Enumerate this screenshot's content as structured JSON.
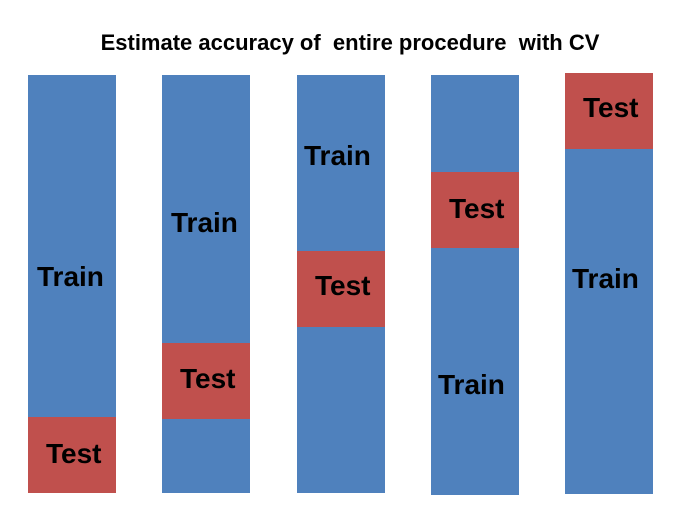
{
  "title": "Estimate accuracy of  entire procedure  with CV",
  "colors": {
    "train": "#4f81bd",
    "test": "#c0504d",
    "text": "#000000",
    "background": "#ffffff"
  },
  "folds": [
    {
      "train_label": "Train",
      "test_label": "Test"
    },
    {
      "train_label": "Train",
      "test_label": "Test"
    },
    {
      "train_label": "Train",
      "test_label": "Test"
    },
    {
      "train_label": "Train",
      "test_label": "Test"
    },
    {
      "train_label": "Train",
      "test_label": "Test"
    }
  ]
}
